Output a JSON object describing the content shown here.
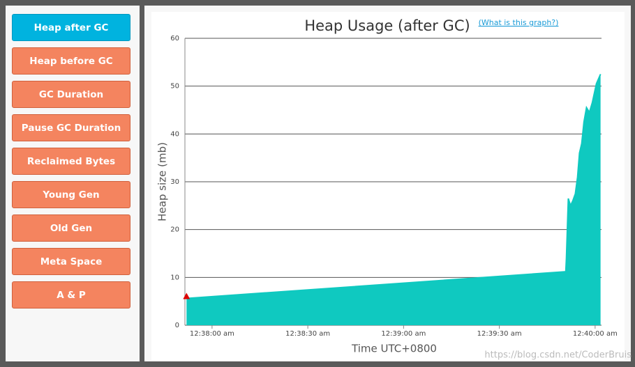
{
  "sidebar": {
    "buttons": [
      "Heap after GC",
      "Heap before GC",
      "GC Duration",
      "Pause GC Duration",
      "Reclaimed Bytes",
      "Young Gen",
      "Old Gen",
      "Meta Space",
      "A & P"
    ],
    "active": 0
  },
  "help_link": "(What is this graph?)",
  "watermark": "https://blog.csdn.net/CoderBruis",
  "chart_data": {
    "type": "area",
    "title": "Heap Usage (after GC)",
    "x_label": "Time UTC+0800",
    "y_label": "Heap size (mb)",
    "x": [
      "00:37:52",
      "00:39:50.8",
      "00:39:51",
      "00:39:51.6",
      "00:39:52.3",
      "00:39:53",
      "00:39:53.8",
      "00:39:54.5",
      "00:39:55.1",
      "00:39:55.8",
      "00:39:56.5",
      "00:39:57.3",
      "00:39:58.2",
      "00:39:59.1",
      "00:40:00.4",
      "00:40:01.7"
    ],
    "series": [
      {
        "name": "Heap after GC",
        "color": "#0fc9c0",
        "values": [
          5.6,
          11.2,
          14,
          26.5,
          25,
          26,
          27.5,
          31,
          36,
          38,
          42.5,
          45.5,
          44.5,
          46.5,
          50.5,
          52.5
        ]
      }
    ],
    "xlim": [
      "00:37:51.5",
      "00:40:02"
    ],
    "xticks": [
      {
        "value": "00:38:00",
        "label": "12:38:00 am"
      },
      {
        "value": "00:38:30",
        "label": "12:38:30 am"
      },
      {
        "value": "00:39:00",
        "label": "12:39:00 am"
      },
      {
        "value": "00:39:30",
        "label": "12:39:30 am"
      },
      {
        "value": "00:40:00",
        "label": "12:40:00 am"
      }
    ],
    "ylim": [
      0,
      60
    ],
    "yticks": [
      0,
      10,
      20,
      30,
      40,
      50,
      60
    ],
    "grid": true
  }
}
